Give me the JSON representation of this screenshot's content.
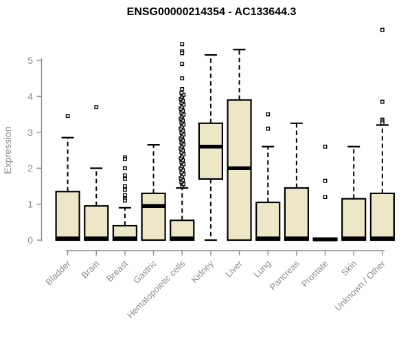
{
  "page": {
    "background": "#FFFFFF"
  },
  "chart_data": {
    "type": "boxplot",
    "title": "ENSG00000214354 - AC133644.3",
    "ylabel": "Expression",
    "xlabel": "",
    "yticks": [
      0,
      1,
      2,
      3,
      4,
      5
    ],
    "ylim": [
      0,
      5.9
    ],
    "grid": false,
    "legend": false,
    "colors": {
      "box_fill": "#EDE7C8",
      "box_stroke": "#000000",
      "median": "#000000",
      "whisker": "#000000",
      "outlier_stroke": "#000000",
      "axis": "#8C8C8C",
      "tick_label": "#8C8C8C",
      "title": "#000000"
    },
    "categories": [
      "Bladder",
      "Brain",
      "Breast",
      "Gastric",
      "Hematopoietic cells",
      "Kidney",
      "Liver",
      "Lung",
      "Pancreas",
      "Prostate",
      "Skin",
      "Unknown / Other"
    ],
    "boxes": [
      {
        "label": "Bladder",
        "q1": 0,
        "median": 0.05,
        "q3": 1.35,
        "whisker_low": 0,
        "whisker_high": 2.85,
        "outliers": [
          3.45
        ]
      },
      {
        "label": "Brain",
        "q1": 0,
        "median": 0.05,
        "q3": 0.95,
        "whisker_low": 0,
        "whisker_high": 2.0,
        "outliers": [
          3.7
        ]
      },
      {
        "label": "Breast",
        "q1": 0,
        "median": 0.05,
        "q3": 0.4,
        "whisker_low": 0,
        "whisker_high": 0.9,
        "outliers": [
          2.3,
          2.25,
          2.0,
          1.8,
          1.7,
          1.5,
          1.4,
          1.25,
          1.15,
          1.1
        ]
      },
      {
        "label": "Gastric",
        "q1": 0,
        "median": 0.95,
        "q3": 1.3,
        "whisker_low": 0,
        "whisker_high": 2.65,
        "outliers": []
      },
      {
        "label": "Hematopoietic cells",
        "q1": 0,
        "median": 0.05,
        "q3": 0.55,
        "whisker_low": 0,
        "whisker_high": 1.45,
        "outliers": [
          5.45,
          5.25,
          5.2,
          4.9,
          4.5,
          4.2
        ],
        "outlier_column": {
          "min": 1.5,
          "max": 4.1,
          "count": 48
        }
      },
      {
        "label": "Kidney",
        "q1": 1.7,
        "median": 2.6,
        "q3": 3.25,
        "whisker_low": 0,
        "whisker_high": 5.15,
        "outliers": []
      },
      {
        "label": "Liver",
        "q1": 0,
        "median": 2.0,
        "q3": 3.9,
        "whisker_low": 0,
        "whisker_high": 5.3,
        "outliers": []
      },
      {
        "label": "Lung",
        "q1": 0,
        "median": 0.05,
        "q3": 1.05,
        "whisker_low": 0,
        "whisker_high": 2.6,
        "outliers": [
          3.5,
          3.1
        ]
      },
      {
        "label": "Pancreas",
        "q1": 0,
        "median": 0.05,
        "q3": 1.45,
        "whisker_low": 0,
        "whisker_high": 3.25,
        "outliers": []
      },
      {
        "label": "Prostate",
        "q1": 0,
        "median": 0.02,
        "q3": 0.05,
        "whisker_low": 0,
        "whisker_high": 0.05,
        "outliers": [
          2.6,
          1.65,
          1.2
        ]
      },
      {
        "label": "Skin",
        "q1": 0,
        "median": 0.05,
        "q3": 1.15,
        "whisker_low": 0,
        "whisker_high": 2.6,
        "outliers": []
      },
      {
        "label": "Unknown / Other",
        "q1": 0,
        "median": 0.05,
        "q3": 1.3,
        "whisker_low": 0,
        "whisker_high": 3.2,
        "outliers": [
          5.85,
          3.85,
          3.35,
          3.3,
          3.25
        ]
      }
    ]
  }
}
